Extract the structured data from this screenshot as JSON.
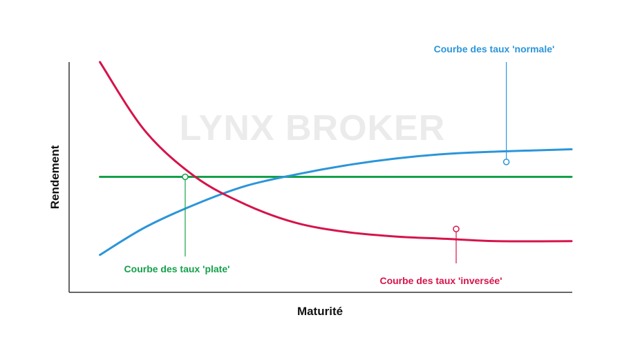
{
  "watermark": "LYNX BROKER",
  "chart_data": {
    "type": "line",
    "xlabel": "Maturité",
    "ylabel": "Rendement",
    "grid": false,
    "xlim": [
      0,
      10
    ],
    "ylim": [
      0,
      10
    ],
    "series": [
      {
        "key": "normale",
        "name": "Courbe des taux 'normale'",
        "color": "#2b95d9",
        "x": [
          0.6,
          1.5,
          2.5,
          3.5,
          4.5,
          5.5,
          6.5,
          7.5,
          8.5,
          10.0
        ],
        "y": [
          1.6,
          2.8,
          3.8,
          4.6,
          5.1,
          5.5,
          5.8,
          6.0,
          6.1,
          6.2
        ]
      },
      {
        "key": "plate",
        "name": "Courbe des taux 'plate'",
        "color": "#14a04a",
        "x": [
          0.6,
          10.0
        ],
        "y": [
          5.0,
          5.0
        ]
      },
      {
        "key": "inversee",
        "name": "Courbe des taux 'inversée'",
        "color": "#d6134a",
        "x": [
          0.6,
          1.5,
          2.5,
          3.5,
          4.5,
          5.5,
          6.5,
          7.5,
          8.5,
          10.0
        ],
        "y": [
          10.0,
          7.0,
          5.0,
          3.8,
          3.0,
          2.6,
          2.4,
          2.3,
          2.2,
          2.2
        ]
      }
    ],
    "annotations": [
      {
        "series": "normale",
        "text": "Courbe des taux 'normale'",
        "x": 8.7,
        "y": 5.65,
        "position": "top-right",
        "color": "#2b95d9"
      },
      {
        "series": "plate",
        "text": "Courbe des taux 'plate'",
        "x": 2.3,
        "y": 5.0,
        "position": "bottom-left",
        "color": "#14a04a"
      },
      {
        "series": "inversee",
        "text": "Courbe des taux 'inversée'",
        "x": 7.7,
        "y": 2.73,
        "position": "bottom-right",
        "color": "#d6134a"
      }
    ]
  }
}
